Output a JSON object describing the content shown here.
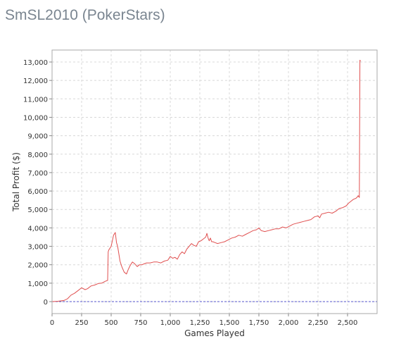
{
  "page": {
    "title": "SmSL2010 (PokerStars)"
  },
  "chart_data": {
    "type": "line",
    "title": "",
    "xlabel": "Games Played",
    "ylabel": "Total Profit ($)",
    "xlim": [
      0,
      2750
    ],
    "ylim": [
      -650,
      13650
    ],
    "xticks": [
      0,
      250,
      500,
      750,
      1000,
      1250,
      1500,
      1750,
      2000,
      2250,
      2500
    ],
    "xtick_labels": [
      "0",
      "250",
      "500",
      "750",
      "1,000",
      "1,250",
      "1,500",
      "1,750",
      "2,000",
      "2,250",
      "2,500"
    ],
    "yticks": [
      0,
      1000,
      2000,
      3000,
      4000,
      5000,
      6000,
      7000,
      8000,
      9000,
      10000,
      11000,
      12000,
      13000
    ],
    "ytick_labels": [
      "0",
      "1,000",
      "2,000",
      "3,000",
      "4,000",
      "5,000",
      "6,000",
      "7,000",
      "8,000",
      "9,000",
      "10,000",
      "11,000",
      "12,000",
      "13,000"
    ],
    "grid": true,
    "colors": {
      "series": "#e05050",
      "zero_line": "#5555cc",
      "grid": "#d8d8d8",
      "frame": "#aaaaaa"
    },
    "series": [
      {
        "x": [
          0,
          50,
          100,
          130,
          160,
          190,
          220,
          250,
          280,
          300,
          330,
          360,
          390,
          420,
          450,
          470,
          475,
          480,
          490,
          500,
          510,
          520,
          535,
          545,
          555,
          565,
          575,
          590,
          610,
          630,
          645,
          660,
          680,
          700,
          720,
          740,
          760,
          780,
          800,
          830,
          860,
          890,
          920,
          950,
          980,
          1000,
          1020,
          1040,
          1060,
          1080,
          1100,
          1120,
          1140,
          1160,
          1180,
          1200,
          1220,
          1240,
          1260,
          1280,
          1300,
          1310,
          1320,
          1330,
          1340,
          1350,
          1360,
          1380,
          1400,
          1430,
          1460,
          1490,
          1520,
          1550,
          1580,
          1610,
          1640,
          1670,
          1700,
          1730,
          1750,
          1770,
          1800,
          1830,
          1860,
          1890,
          1920,
          1950,
          1980,
          2010,
          2040,
          2070,
          2100,
          2130,
          2160,
          2190,
          2220,
          2250,
          2265,
          2280,
          2310,
          2340,
          2370,
          2400,
          2430,
          2460,
          2490,
          2510,
          2530,
          2550,
          2570,
          2580,
          2590,
          2600,
          2605,
          2610
        ],
        "y": [
          0,
          20,
          60,
          150,
          350,
          450,
          600,
          750,
          650,
          700,
          850,
          900,
          980,
          1000,
          1100,
          1150,
          2700,
          2800,
          2900,
          3000,
          3300,
          3600,
          3750,
          3200,
          3000,
          2600,
          2200,
          1900,
          1600,
          1500,
          1750,
          1950,
          2150,
          2050,
          1900,
          2000,
          2000,
          2050,
          2100,
          2100,
          2150,
          2150,
          2100,
          2200,
          2250,
          2450,
          2350,
          2400,
          2300,
          2550,
          2700,
          2600,
          2850,
          3000,
          3150,
          3050,
          3000,
          3250,
          3300,
          3400,
          3500,
          3700,
          3450,
          3300,
          3450,
          3250,
          3250,
          3200,
          3150,
          3200,
          3250,
          3350,
          3450,
          3500,
          3600,
          3550,
          3650,
          3750,
          3850,
          3900,
          4000,
          3850,
          3800,
          3850,
          3900,
          3950,
          3950,
          4050,
          4000,
          4100,
          4200,
          4250,
          4300,
          4350,
          4400,
          4450,
          4600,
          4650,
          4550,
          4750,
          4800,
          4850,
          4800,
          4900,
          5050,
          5100,
          5200,
          5350,
          5450,
          5550,
          5600,
          5650,
          5750,
          5650,
          13100,
          13050
        ]
      }
    ]
  }
}
